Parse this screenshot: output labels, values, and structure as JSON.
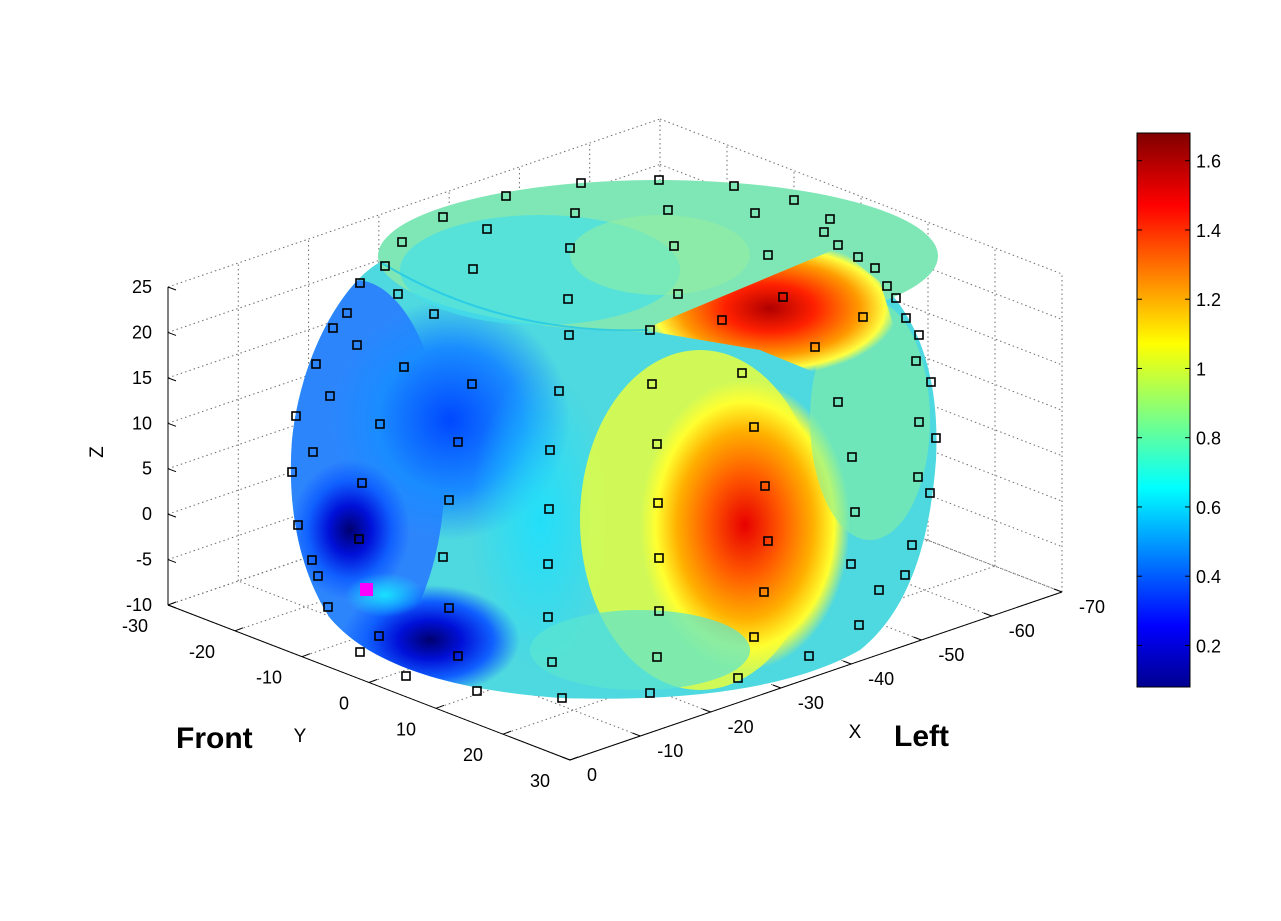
{
  "chart_data": {
    "type": "3d-surface",
    "axes": {
      "x": {
        "label": "X",
        "ticks": [
          0,
          -10,
          -20,
          -30,
          -40,
          -50,
          -60,
          -70
        ],
        "range": [
          -70,
          0
        ]
      },
      "y": {
        "label": "Y",
        "ticks": [
          -30,
          -20,
          -10,
          0,
          10,
          20,
          30
        ],
        "range": [
          -30,
          30
        ]
      },
      "z": {
        "label": "Z",
        "ticks": [
          25,
          20,
          15,
          10,
          5,
          0,
          -5,
          -10
        ],
        "range": [
          -10,
          25
        ]
      }
    },
    "view_labels": {
      "front": "Front",
      "left": "Left"
    },
    "colorbar": {
      "colormap": "jet",
      "range": [
        0.08,
        1.68
      ],
      "ticks": [
        "1.6",
        "1.4",
        "1.2",
        "1",
        "0.8",
        "0.6",
        "0.4",
        "0.2"
      ]
    },
    "grid": true,
    "marked_point_color": "#ff00ff",
    "sensor_marker_color": "#000000"
  }
}
